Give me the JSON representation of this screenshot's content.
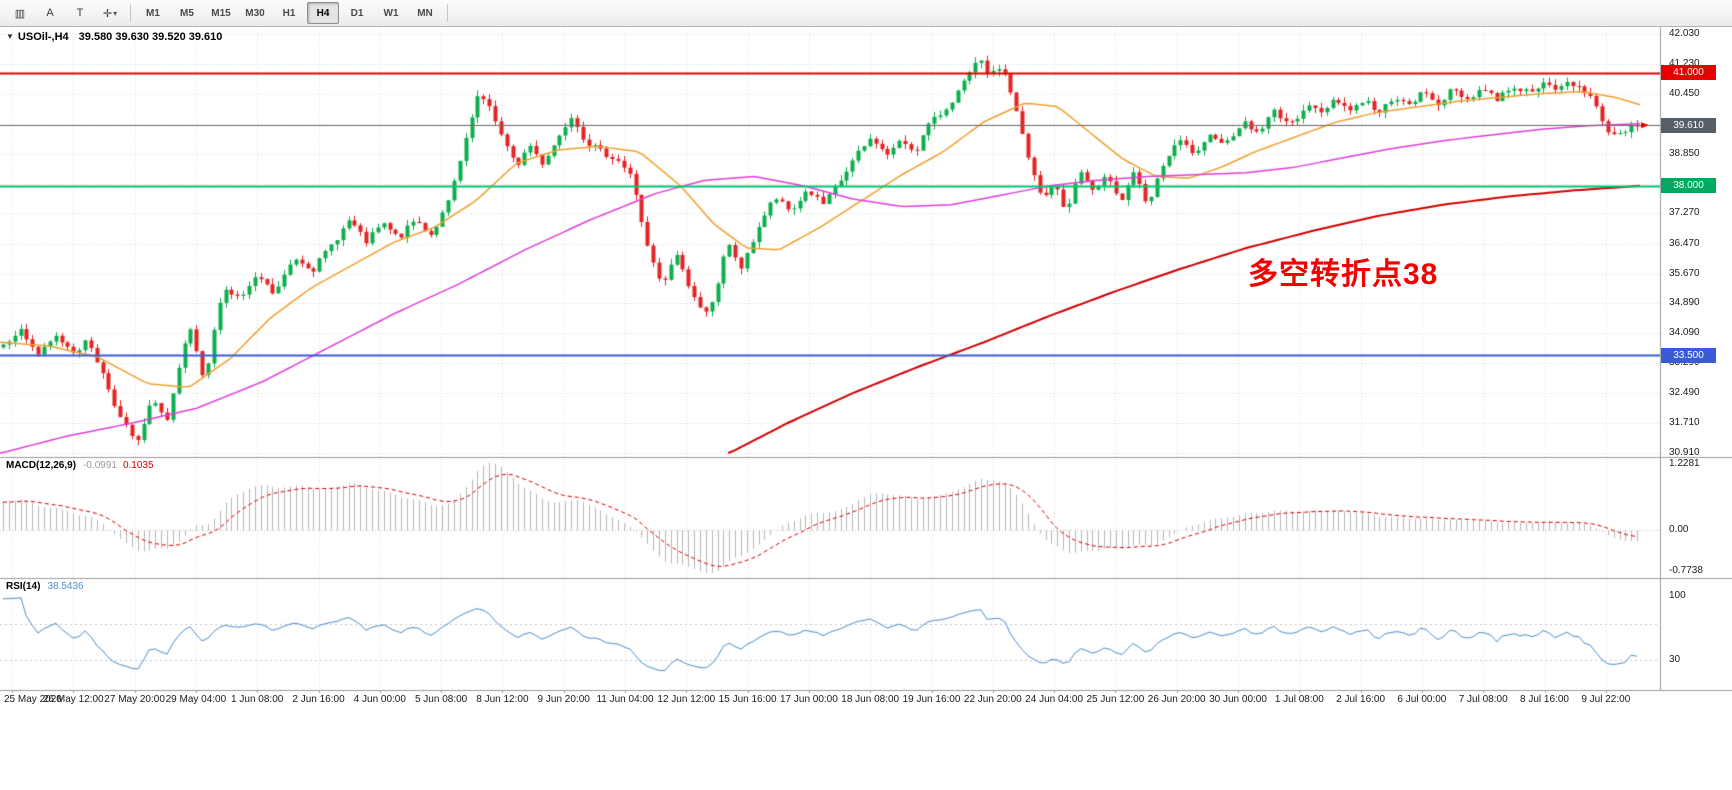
{
  "toolbar": {
    "icons": [
      {
        "name": "charts-grip-icon",
        "glyph": "▥"
      },
      {
        "name": "text-label-tool-icon",
        "glyph": "A"
      },
      {
        "name": "template-tool-icon",
        "glyph": "T"
      },
      {
        "name": "crosshair-tool-icon",
        "glyph": "✛",
        "caret": "▾"
      }
    ],
    "timeframes": [
      "M1",
      "M5",
      "M15",
      "M30",
      "H1",
      "H4",
      "D1",
      "W1",
      "MN"
    ],
    "active_timeframe": "H4"
  },
  "chart": {
    "header": {
      "collapse_icon": "▼",
      "symbol": "USOil-,H4",
      "ohlc": "39.580 39.630 39.520 39.610"
    }
  },
  "macd_panel": {
    "label": "MACD(12,26,9)",
    "value_main": "-0.0991",
    "value_signal": "0.1035",
    "axis_labels": {
      "top": "1.2281",
      "zero": "0.00",
      "bottom": "-0.7738"
    },
    "max": 1.2281,
    "min": -0.7738,
    "histogram_color": "#b6b6b6",
    "signal_color": "#e00000"
  },
  "rsi_panel": {
    "label": "RSI(14)",
    "value": "38.5436",
    "axis_labels": {
      "top": "100",
      "low": "30"
    },
    "max": 100,
    "min": 0,
    "levels": [
      70,
      30
    ],
    "line_color": "#4e8fce"
  },
  "chart_data": {
    "type": "candlestick",
    "symbol": "USOil-",
    "timeframe": "H4",
    "last_ohlc": {
      "open": "39.580",
      "high": "39.630",
      "low": "39.520",
      "close": "39.610"
    },
    "bars": 280,
    "y_range": [
      30.91,
      42.03
    ],
    "y_ticks": [
      "42.030",
      "41.230",
      "40.450",
      "39.650",
      "38.850",
      "38.050",
      "37.270",
      "36.470",
      "35.670",
      "34.890",
      "34.090",
      "33.290",
      "32.490",
      "31.710",
      "30.910"
    ],
    "x_labels": [
      "25 May 2020",
      "26 May 12:00",
      "27 May 20:00",
      "29 May 04:00",
      "1 Jun 08:00",
      "2 Jun 16:00",
      "4 Jun 00:00",
      "5 Jun 08:00",
      "8 Jun 12:00",
      "9 Jun 20:00",
      "11 Jun 04:00",
      "12 Jun 12:00",
      "15 Jun 16:00",
      "17 Jun 00:00",
      "18 Jun 08:00",
      "19 Jun 16:00",
      "22 Jun 20:00",
      "24 Jun 04:00",
      "25 Jun 12:00",
      "26 Jun 20:00",
      "30 Jun 00:00",
      "1 Jul 08:00",
      "2 Jul 16:00",
      "6 Jul 00:00",
      "7 Jul 08:00",
      "8 Jul 16:00",
      "9 Jul 22:00"
    ],
    "up_color": "#0eae4e",
    "down_color": "#e32424",
    "horizontal_lines": [
      {
        "label": "41.000",
        "value": 41.0,
        "line_color": "#e60000",
        "box_color": "#e60000",
        "width": 2,
        "kind": "resistance"
      },
      {
        "label": "39.610",
        "value": 39.61,
        "line_color": "#6f6f6f",
        "box_color": "#565e66",
        "width": 1,
        "kind": "current-price"
      },
      {
        "label": "38.000",
        "value": 38.0,
        "line_color": "#00c572",
        "box_color": "#00a95f",
        "width": 2,
        "kind": "pivot"
      },
      {
        "label": "33.500",
        "value": 33.5,
        "line_color": "#3b5bd6",
        "box_color": "#3b5bd6",
        "width": 2,
        "kind": "support"
      }
    ],
    "annotation": {
      "text": "多空转折点38",
      "color": "#f50000"
    },
    "approx_close_path": [
      [
        0,
        33.8
      ],
      [
        0.01,
        34.2
      ],
      [
        0.022,
        33.5
      ],
      [
        0.032,
        34.0
      ],
      [
        0.044,
        33.6
      ],
      [
        0.052,
        33.9
      ],
      [
        0.062,
        32.9
      ],
      [
        0.072,
        31.8
      ],
      [
        0.082,
        31.15
      ],
      [
        0.092,
        32.4
      ],
      [
        0.1,
        31.7
      ],
      [
        0.107,
        33.0
      ],
      [
        0.114,
        34.3
      ],
      [
        0.123,
        32.7
      ],
      [
        0.134,
        35.3
      ],
      [
        0.145,
        35.0
      ],
      [
        0.156,
        35.6
      ],
      [
        0.166,
        35.1
      ],
      [
        0.178,
        36.1
      ],
      [
        0.19,
        35.8
      ],
      [
        0.202,
        36.5
      ],
      [
        0.212,
        37.1
      ],
      [
        0.222,
        36.5
      ],
      [
        0.232,
        37.0
      ],
      [
        0.242,
        36.6
      ],
      [
        0.252,
        37.1
      ],
      [
        0.262,
        36.7
      ],
      [
        0.272,
        37.5
      ],
      [
        0.282,
        39.0
      ],
      [
        0.29,
        40.35
      ],
      [
        0.298,
        40.1
      ],
      [
        0.306,
        39.2
      ],
      [
        0.314,
        38.5
      ],
      [
        0.322,
        39.1
      ],
      [
        0.33,
        38.6
      ],
      [
        0.34,
        39.3
      ],
      [
        0.348,
        39.9
      ],
      [
        0.356,
        39.2
      ],
      [
        0.366,
        38.9
      ],
      [
        0.376,
        38.7
      ],
      [
        0.385,
        38.2
      ],
      [
        0.394,
        36.4
      ],
      [
        0.403,
        35.3
      ],
      [
        0.412,
        36.2
      ],
      [
        0.42,
        35.3
      ],
      [
        0.428,
        34.6
      ],
      [
        0.436,
        35.1
      ],
      [
        0.443,
        36.5
      ],
      [
        0.452,
        35.8
      ],
      [
        0.462,
        36.9
      ],
      [
        0.472,
        37.7
      ],
      [
        0.482,
        37.3
      ],
      [
        0.492,
        37.9
      ],
      [
        0.502,
        37.5
      ],
      [
        0.512,
        38.1
      ],
      [
        0.522,
        38.8
      ],
      [
        0.532,
        39.3
      ],
      [
        0.54,
        38.8
      ],
      [
        0.55,
        39.2
      ],
      [
        0.558,
        38.9
      ],
      [
        0.566,
        39.6
      ],
      [
        0.576,
        40.0
      ],
      [
        0.586,
        40.6
      ],
      [
        0.597,
        41.35
      ],
      [
        0.604,
        40.9
      ],
      [
        0.611,
        41.2
      ],
      [
        0.618,
        40.3
      ],
      [
        0.628,
        38.6
      ],
      [
        0.636,
        37.6
      ],
      [
        0.643,
        38.1
      ],
      [
        0.65,
        37.3
      ],
      [
        0.659,
        38.4
      ],
      [
        0.668,
        37.8
      ],
      [
        0.676,
        38.3
      ],
      [
        0.684,
        37.6
      ],
      [
        0.692,
        38.4
      ],
      [
        0.7,
        37.4
      ],
      [
        0.71,
        38.6
      ],
      [
        0.72,
        39.2
      ],
      [
        0.73,
        38.8
      ],
      [
        0.74,
        39.4
      ],
      [
        0.748,
        39.1
      ],
      [
        0.758,
        39.7
      ],
      [
        0.768,
        39.4
      ],
      [
        0.778,
        40.0
      ],
      [
        0.788,
        39.6
      ],
      [
        0.798,
        40.2
      ],
      [
        0.806,
        39.9
      ],
      [
        0.815,
        40.35
      ],
      [
        0.824,
        40.0
      ],
      [
        0.833,
        40.3
      ],
      [
        0.842,
        39.9
      ],
      [
        0.851,
        40.4
      ],
      [
        0.86,
        40.1
      ],
      [
        0.869,
        40.5
      ],
      [
        0.878,
        40.2
      ],
      [
        0.887,
        40.55
      ],
      [
        0.896,
        40.3
      ],
      [
        0.905,
        40.6
      ],
      [
        0.914,
        40.3
      ],
      [
        0.923,
        40.65
      ],
      [
        0.932,
        40.5
      ],
      [
        0.941,
        40.7
      ],
      [
        0.95,
        40.55
      ],
      [
        0.958,
        40.75
      ],
      [
        0.966,
        40.6
      ],
      [
        0.973,
        40.3
      ],
      [
        0.979,
        39.6
      ],
      [
        0.986,
        39.35
      ],
      [
        0.993,
        39.5
      ],
      [
        1,
        39.61
      ]
    ],
    "moving_averages": [
      {
        "name": "fast-ma",
        "color": "#f0a030",
        "width": 1.5,
        "anchors": [
          [
            0,
            33.85
          ],
          [
            0.03,
            33.75
          ],
          [
            0.06,
            33.45
          ],
          [
            0.09,
            32.75
          ],
          [
            0.115,
            32.65
          ],
          [
            0.14,
            33.4
          ],
          [
            0.165,
            34.5
          ],
          [
            0.19,
            35.3
          ],
          [
            0.215,
            35.9
          ],
          [
            0.24,
            36.5
          ],
          [
            0.265,
            36.9
          ],
          [
            0.29,
            37.6
          ],
          [
            0.315,
            38.6
          ],
          [
            0.34,
            38.95
          ],
          [
            0.365,
            39.05
          ],
          [
            0.39,
            38.9
          ],
          [
            0.415,
            38.0
          ],
          [
            0.435,
            37.0
          ],
          [
            0.455,
            36.35
          ],
          [
            0.475,
            36.3
          ],
          [
            0.5,
            36.9
          ],
          [
            0.525,
            37.6
          ],
          [
            0.55,
            38.3
          ],
          [
            0.575,
            38.9
          ],
          [
            0.6,
            39.7
          ],
          [
            0.625,
            40.2
          ],
          [
            0.645,
            40.1
          ],
          [
            0.665,
            39.4
          ],
          [
            0.685,
            38.7
          ],
          [
            0.705,
            38.25
          ],
          [
            0.725,
            38.2
          ],
          [
            0.745,
            38.5
          ],
          [
            0.765,
            38.9
          ],
          [
            0.79,
            39.3
          ],
          [
            0.815,
            39.7
          ],
          [
            0.84,
            39.95
          ],
          [
            0.865,
            40.1
          ],
          [
            0.89,
            40.25
          ],
          [
            0.915,
            40.35
          ],
          [
            0.94,
            40.45
          ],
          [
            0.965,
            40.5
          ],
          [
            0.985,
            40.35
          ],
          [
            1,
            40.15
          ]
        ]
      },
      {
        "name": "medium-ma",
        "color": "#df3fd8",
        "width": 1.5,
        "anchors": [
          [
            0,
            30.9
          ],
          [
            0.04,
            31.35
          ],
          [
            0.08,
            31.7
          ],
          [
            0.12,
            32.1
          ],
          [
            0.16,
            32.8
          ],
          [
            0.2,
            33.7
          ],
          [
            0.24,
            34.6
          ],
          [
            0.28,
            35.4
          ],
          [
            0.32,
            36.3
          ],
          [
            0.36,
            37.1
          ],
          [
            0.4,
            37.8
          ],
          [
            0.43,
            38.15
          ],
          [
            0.46,
            38.25
          ],
          [
            0.49,
            38.0
          ],
          [
            0.52,
            37.65
          ],
          [
            0.55,
            37.45
          ],
          [
            0.58,
            37.5
          ],
          [
            0.61,
            37.75
          ],
          [
            0.64,
            38.0
          ],
          [
            0.67,
            38.15
          ],
          [
            0.7,
            38.25
          ],
          [
            0.73,
            38.3
          ],
          [
            0.76,
            38.35
          ],
          [
            0.79,
            38.5
          ],
          [
            0.82,
            38.75
          ],
          [
            0.85,
            39.0
          ],
          [
            0.88,
            39.2
          ],
          [
            0.91,
            39.35
          ],
          [
            0.94,
            39.5
          ],
          [
            0.97,
            39.6
          ],
          [
            1,
            39.65
          ]
        ]
      },
      {
        "name": "slow-ma",
        "color": "#d00000",
        "width": 2,
        "anchors": [
          [
            0.44,
            30.8
          ],
          [
            0.48,
            31.7
          ],
          [
            0.52,
            32.5
          ],
          [
            0.56,
            33.2
          ],
          [
            0.6,
            33.85
          ],
          [
            0.64,
            34.55
          ],
          [
            0.68,
            35.2
          ],
          [
            0.72,
            35.8
          ],
          [
            0.76,
            36.35
          ],
          [
            0.8,
            36.8
          ],
          [
            0.84,
            37.2
          ],
          [
            0.88,
            37.5
          ],
          [
            0.92,
            37.72
          ],
          [
            0.96,
            37.88
          ],
          [
            1,
            38.0
          ]
        ]
      }
    ]
  }
}
